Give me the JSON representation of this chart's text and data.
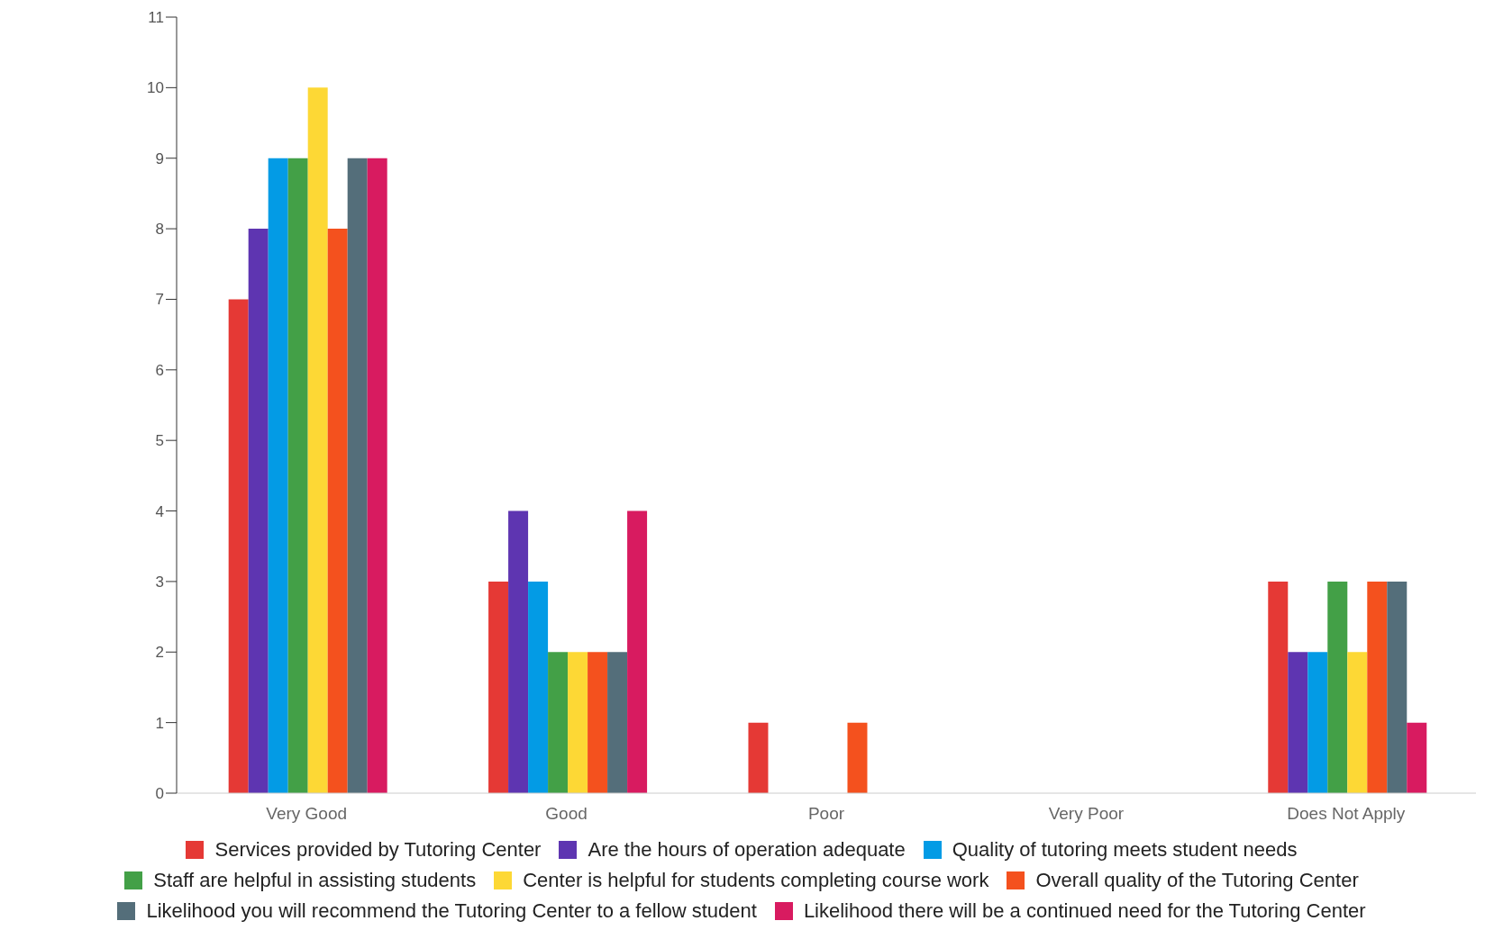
{
  "chart_data": {
    "type": "bar",
    "categories": [
      "Very Good",
      "Good",
      "Poor",
      "Very Poor",
      "Does Not Apply"
    ],
    "series": [
      {
        "name": "Services provided by Tutoring Center",
        "color": "#e53935",
        "values": [
          7,
          3,
          1,
          0,
          3
        ]
      },
      {
        "name": "Are the hours of operation adequate",
        "color": "#5e35b1",
        "values": [
          8,
          4,
          0,
          0,
          2
        ]
      },
      {
        "name": "Quality of tutoring meets student needs",
        "color": "#039be5",
        "values": [
          9,
          3,
          0,
          0,
          2
        ]
      },
      {
        "name": "Staff are helpful in assisting students",
        "color": "#43a047",
        "values": [
          9,
          2,
          0,
          0,
          3
        ]
      },
      {
        "name": "Center is helpful for students completing course work",
        "color": "#fdd835",
        "values": [
          10,
          2,
          0,
          0,
          2
        ]
      },
      {
        "name": "Overall quality of the Tutoring Center",
        "color": "#f4511e",
        "values": [
          8,
          2,
          1,
          0,
          3
        ]
      },
      {
        "name": "Likelihood you will recommend the Tutoring Center to a fellow student",
        "color": "#546e7a",
        "values": [
          9,
          2,
          0,
          0,
          3
        ]
      },
      {
        "name": "Likelihood there will be a continued need for the Tutoring Center",
        "color": "#d81b60",
        "values": [
          9,
          4,
          0,
          0,
          1
        ]
      }
    ],
    "ylim": [
      0,
      11
    ],
    "yticks": [
      0,
      1,
      2,
      3,
      4,
      5,
      6,
      7,
      8,
      9,
      10,
      11
    ],
    "grid": false,
    "legend": "bottom"
  }
}
